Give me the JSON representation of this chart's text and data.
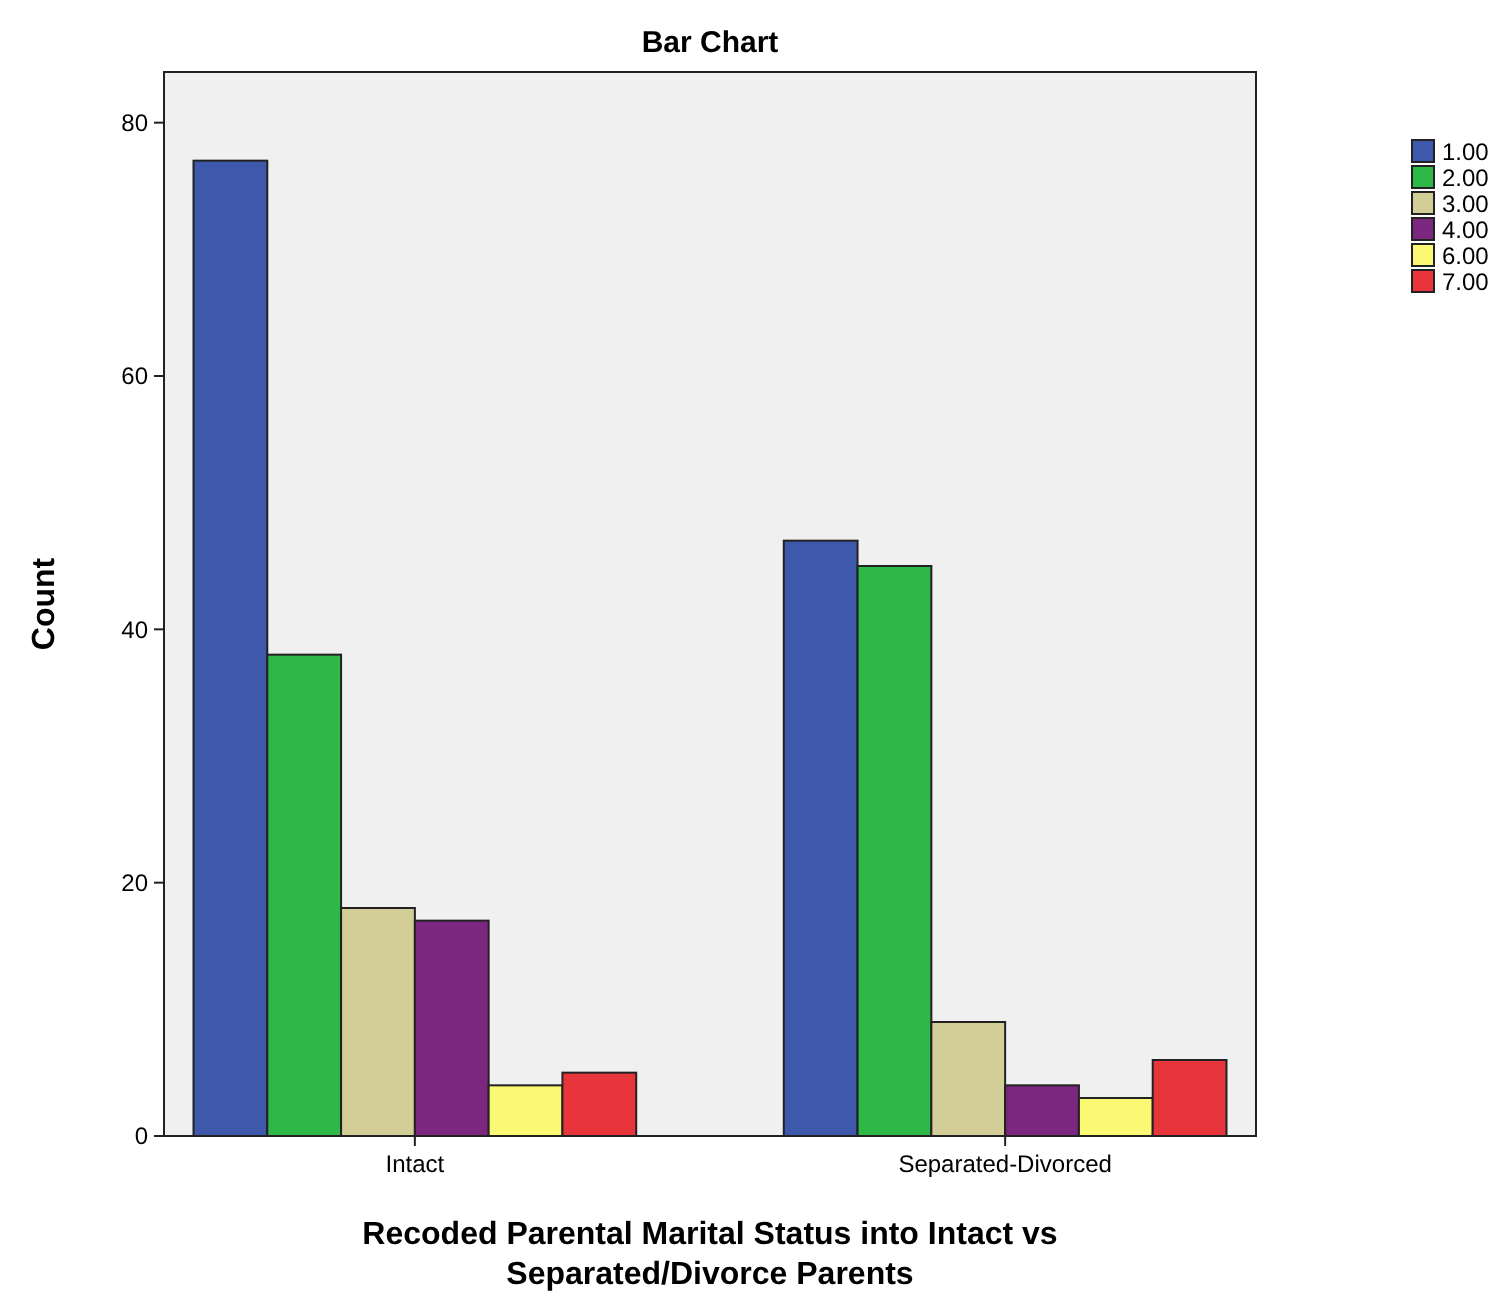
{
  "chart_data": {
    "type": "bar",
    "title": "Bar Chart",
    "xlabel": "Recoded Parental Marital Status into Intact vs Separated/Divorce Parents",
    "ylabel": "Count",
    "categories": [
      "Intact",
      "Separated-Divorced"
    ],
    "series": [
      {
        "name": "1.00",
        "color": "#3e58ac",
        "values": [
          77,
          47
        ]
      },
      {
        "name": "2.00",
        "color": "#2eb848",
        "values": [
          38,
          45
        ]
      },
      {
        "name": "3.00",
        "color": "#d3ce97",
        "values": [
          18,
          9
        ]
      },
      {
        "name": "4.00",
        "color": "#7b277f",
        "values": [
          17,
          4
        ]
      },
      {
        "name": "6.00",
        "color": "#fbf873",
        "values": [
          4,
          3
        ]
      },
      {
        "name": "7.00",
        "color": "#e8353b",
        "values": [
          5,
          6
        ]
      }
    ],
    "ylim": [
      0,
      84
    ],
    "yticks": [
      0,
      20,
      40,
      60,
      80
    ],
    "grid": false,
    "legend": "top right"
  }
}
